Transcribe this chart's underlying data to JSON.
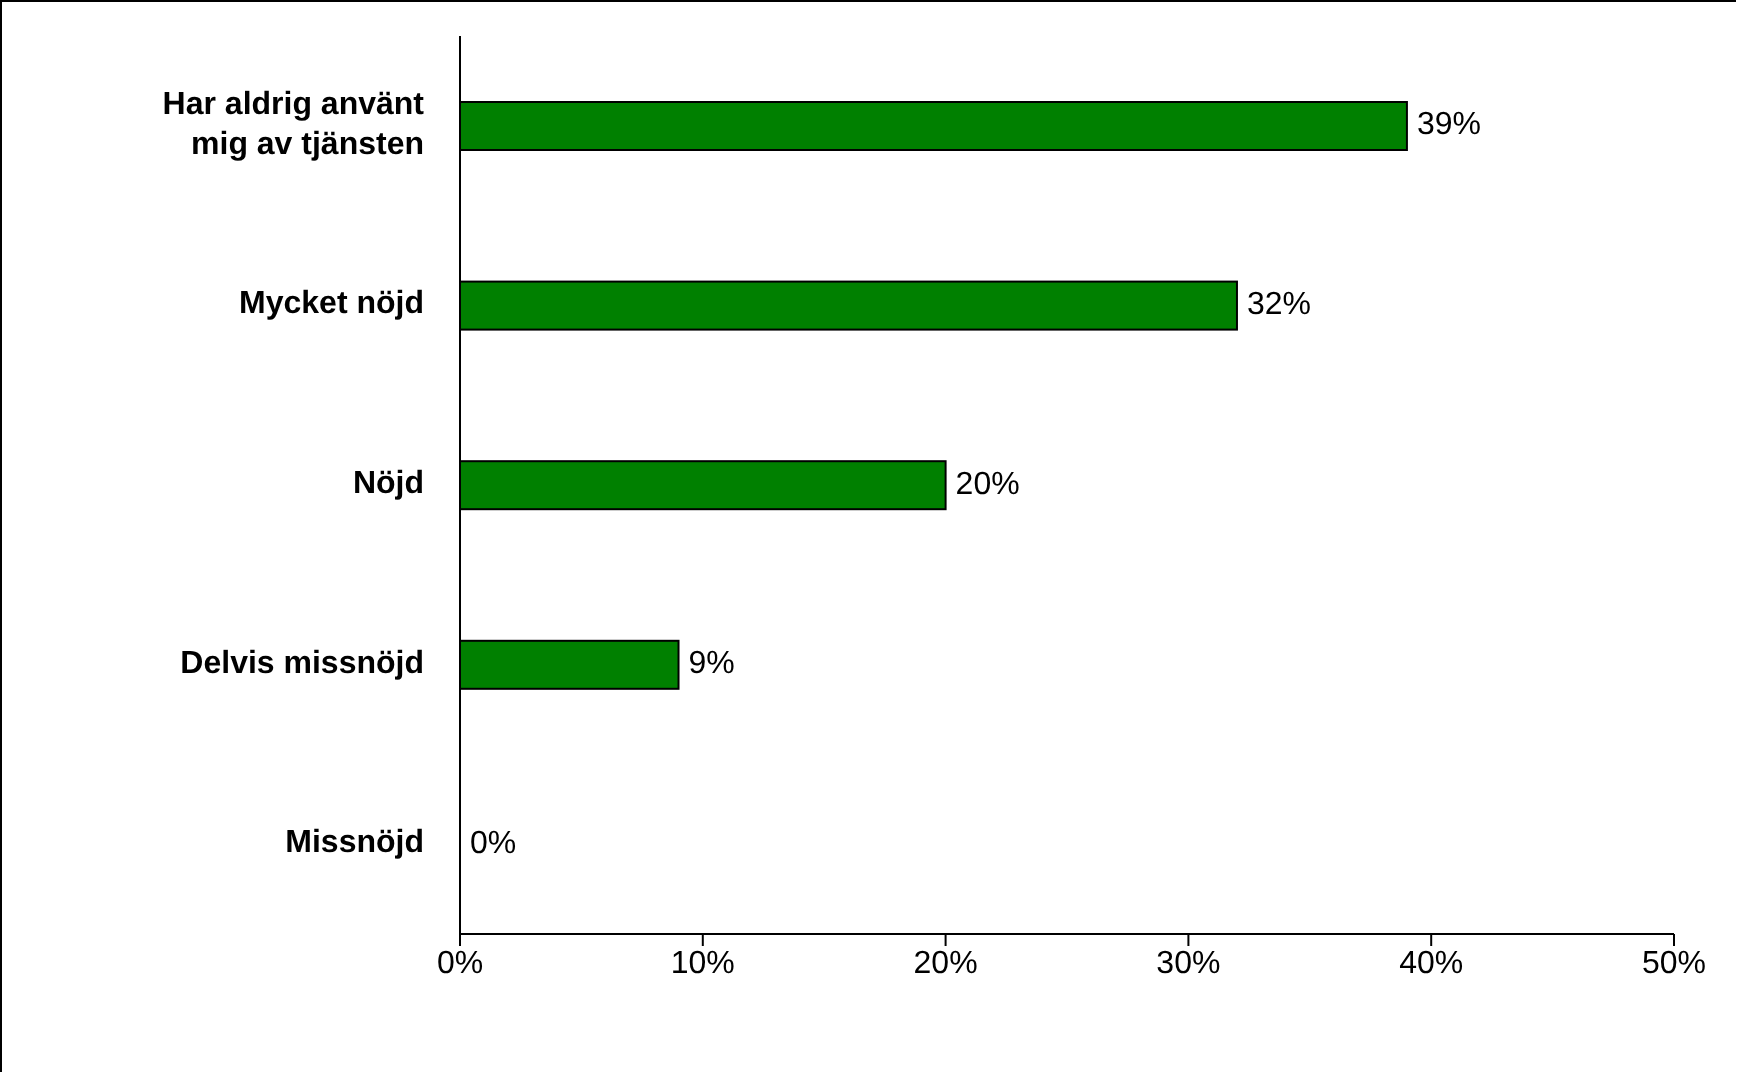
{
  "chart_data": {
    "type": "bar",
    "orientation": "horizontal",
    "categories": [
      "Har aldrig använt mig av tjänsten",
      "Mycket nöjd",
      "Nöjd",
      "Delvis missnöjd",
      "Missnöjd"
    ],
    "values": [
      39,
      32,
      20,
      9,
      0
    ],
    "value_labels": [
      "39%",
      "32%",
      "20%",
      "9%",
      "0%"
    ],
    "color": "#008000",
    "xlim": [
      0,
      50
    ],
    "xticks": [
      {
        "value": 0,
        "label": "0%"
      },
      {
        "value": 10,
        "label": "10%"
      },
      {
        "value": 20,
        "label": "20%"
      },
      {
        "value": 30,
        "label": "30%"
      },
      {
        "value": 40,
        "label": "40%"
      },
      {
        "value": 50,
        "label": "50%"
      }
    ],
    "grid": false,
    "legend": false
  }
}
